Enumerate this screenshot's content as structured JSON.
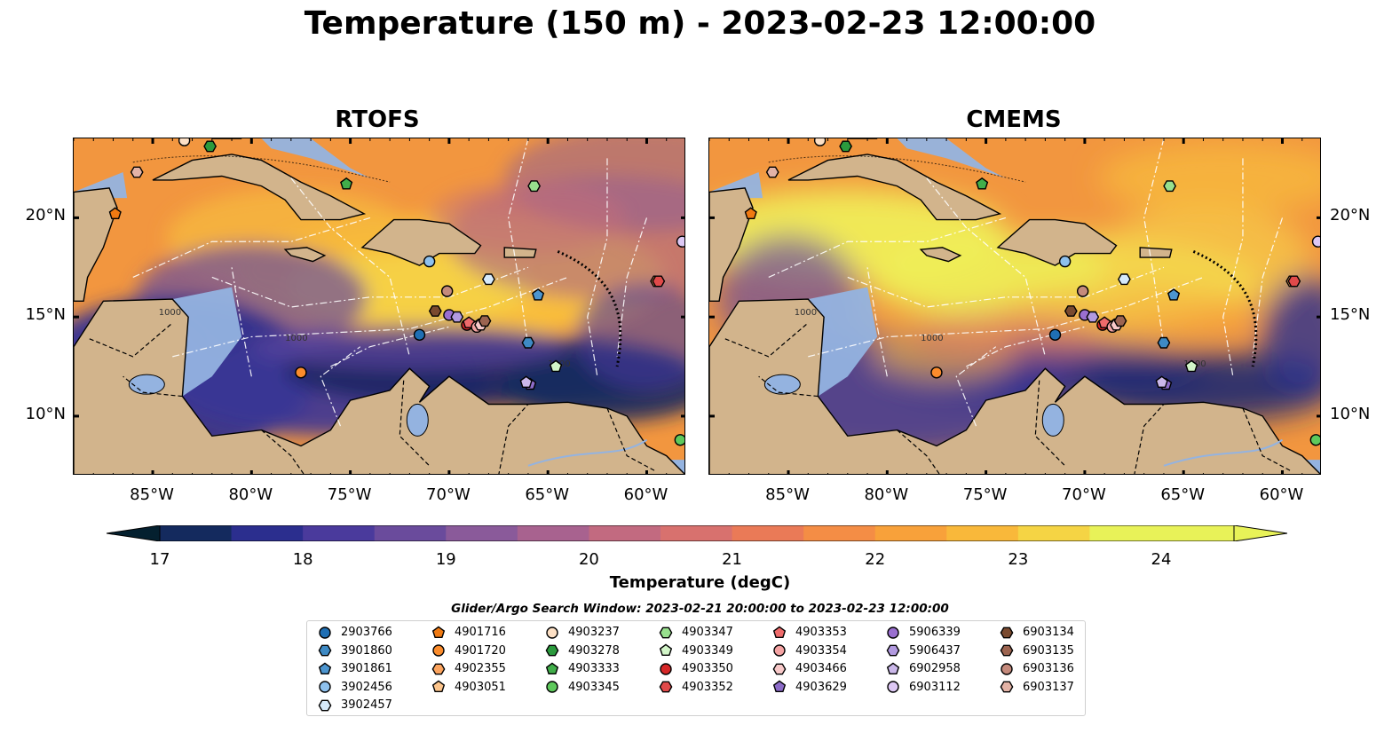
{
  "figure": {
    "title": "Temperature (150 m) - 2023-02-23 12:00:00"
  },
  "panels": [
    {
      "id": "rtofs",
      "title": "RTOFS"
    },
    {
      "id": "cmems",
      "title": "CMEMS"
    }
  ],
  "map_extent": {
    "lon": [
      -89,
      -58
    ],
    "lat": [
      7,
      24
    ]
  },
  "axes": {
    "x_ticks": [
      "85°W",
      "80°W",
      "75°W",
      "70°W",
      "65°W",
      "60°W"
    ],
    "y_ticks": [
      "20°N",
      "15°N",
      "10°N"
    ],
    "x_tick_values": [
      -85,
      -80,
      -75,
      -70,
      -65,
      -60
    ],
    "y_tick_values": [
      20,
      15,
      10
    ]
  },
  "contour_labels": [
    "1000",
    "1000",
    "1000"
  ],
  "colorbar": {
    "label": "Temperature (degC)",
    "ticks": [
      "17",
      "18",
      "19",
      "20",
      "21",
      "22",
      "23",
      "24"
    ],
    "tick_values": [
      17,
      18,
      19,
      20,
      21,
      22,
      23,
      24
    ],
    "range": [
      16.75,
      24.5
    ],
    "colormap": "thermal",
    "colors": [
      "#04202f",
      "#142a5e",
      "#2b2e8e",
      "#4a3a9c",
      "#6a4b9c",
      "#8a5a9a",
      "#a8628f",
      "#c26a80",
      "#d8716e",
      "#ea7a57",
      "#f48d45",
      "#f8a13a",
      "#f9b83a",
      "#f5d444",
      "#e8f258"
    ],
    "extend": "both"
  },
  "colors": {
    "ocean_shallow": "#94b3e0",
    "land": "#d2b48c",
    "water_deep": "#04202f"
  },
  "legend": {
    "title": "Glider/Argo Search Window: 2023-02-21 20:00:00 to 2023-02-23 12:00:00",
    "items": [
      {
        "id": "2903766",
        "marker": "circle",
        "color": "#1f6fb4",
        "lon": -71.5,
        "lat": 14.1
      },
      {
        "id": "3901860",
        "marker": "hexagon",
        "color": "#3e8ac4",
        "lon": -66.0,
        "lat": 13.7
      },
      {
        "id": "3901861",
        "marker": "pentagon",
        "color": "#4c95cf",
        "lon": -65.5,
        "lat": 16.1
      },
      {
        "id": "3902456",
        "marker": "circle",
        "color": "#8ec1ee",
        "lon": -71.0,
        "lat": 17.8
      },
      {
        "id": "3902457",
        "marker": "hexagon",
        "color": "#d6eafb",
        "lon": -68.0,
        "lat": 16.9
      },
      {
        "id": "4901716",
        "marker": "pentagon",
        "color": "#f07a12",
        "lon": -86.9,
        "lat": 20.2
      },
      {
        "id": "4901720",
        "marker": "circle",
        "color": "#fb8c2c",
        "lon": -77.5,
        "lat": 12.2
      },
      {
        "id": "4902355",
        "marker": "hexagon",
        "color": "#fca45e",
        "lon": -59.5,
        "lat": 16.8
      },
      {
        "id": "4903051",
        "marker": "pentagon",
        "color": "#fdc58c",
        "lon": -68.5,
        "lat": 14.6
      },
      {
        "id": "4903237",
        "marker": "circle",
        "color": "#fde0c5",
        "lon": -83.4,
        "lat": 23.9
      },
      {
        "id": "4903278",
        "marker": "hexagon",
        "color": "#2b9a3d",
        "lon": -82.1,
        "lat": 23.6
      },
      {
        "id": "4903333",
        "marker": "pentagon",
        "color": "#41ae4a",
        "lon": -75.2,
        "lat": 21.7
      },
      {
        "id": "4903345",
        "marker": "circle",
        "color": "#5ec95c",
        "lon": -58.3,
        "lat": 8.8
      },
      {
        "id": "4903347",
        "marker": "hexagon",
        "color": "#98e08e",
        "lon": -65.7,
        "lat": 21.6
      },
      {
        "id": "4903349",
        "marker": "pentagon",
        "color": "#d2f5c8",
        "lon": -64.6,
        "lat": 12.5
      },
      {
        "id": "4903350",
        "marker": "circle",
        "color": "#d62728",
        "lon": -69.1,
        "lat": 14.6
      },
      {
        "id": "4903352",
        "marker": "hexagon",
        "color": "#e04a4a",
        "lon": -59.4,
        "lat": 16.8
      },
      {
        "id": "4903353",
        "marker": "pentagon",
        "color": "#ef6b6b",
        "lon": -69.0,
        "lat": 14.7
      },
      {
        "id": "4903354",
        "marker": "circle",
        "color": "#f4a3a3",
        "lon": -68.6,
        "lat": 14.5
      },
      {
        "id": "4903466",
        "marker": "hexagon",
        "color": "#f8c9c9",
        "lon": -68.4,
        "lat": 14.6
      },
      {
        "id": "4903629",
        "marker": "pentagon",
        "color": "#8c6bc8",
        "lon": -65.9,
        "lat": 11.6
      },
      {
        "id": "5906339",
        "marker": "circle",
        "color": "#9a6fd0",
        "lon": -70.0,
        "lat": 15.1
      },
      {
        "id": "5906437",
        "marker": "hexagon",
        "color": "#b29ae0",
        "lon": -69.6,
        "lat": 15.0
      },
      {
        "id": "6902958",
        "marker": "pentagon",
        "color": "#cbb8ea",
        "lon": -66.1,
        "lat": 11.7
      },
      {
        "id": "6903112",
        "marker": "circle",
        "color": "#ddc8f4",
        "lon": -58.2,
        "lat": 18.8
      },
      {
        "id": "6903134",
        "marker": "hexagon",
        "color": "#7a4a2f",
        "lon": -70.7,
        "lat": 15.3
      },
      {
        "id": "6903135",
        "marker": "hexagon",
        "color": "#9c6450",
        "lon": -68.2,
        "lat": 14.8
      },
      {
        "id": "6903136",
        "marker": "circle",
        "color": "#c58a7c",
        "lon": -70.1,
        "lat": 16.3
      },
      {
        "id": "6903137",
        "marker": "hexagon",
        "color": "#e3b3a6",
        "lon": -85.8,
        "lat": 22.3
      }
    ]
  }
}
